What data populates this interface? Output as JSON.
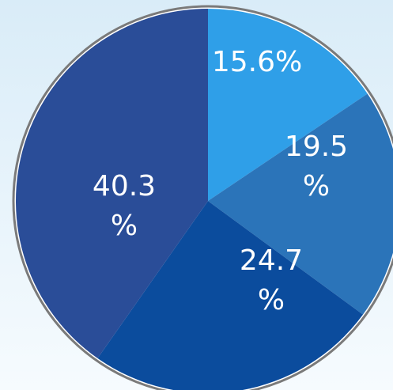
{
  "chart_data": {
    "type": "pie",
    "slices": [
      {
        "value": 15.6,
        "label_lines": [
          "15.6%"
        ],
        "color": "#2f9fe8"
      },
      {
        "value": 19.5,
        "label_lines": [
          "19.5",
          "%"
        ],
        "color": "#2b74b9"
      },
      {
        "value": 24.7,
        "label_lines": [
          "24.7",
          "%"
        ],
        "color": "#0b4c9d"
      },
      {
        "value": 40.3,
        "label_lines": [
          "40.3",
          "%"
        ],
        "color": "#2a4d98"
      }
    ],
    "start_angle_deg": 0,
    "direction": "clockwise",
    "outer_ring_color": "#7a7a7a",
    "background": {
      "top": "#d9ecf8",
      "bottom": "#f6fbfe"
    }
  }
}
